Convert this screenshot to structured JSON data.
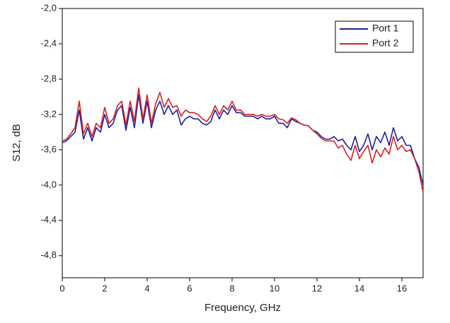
{
  "chart_data": {
    "type": "line",
    "xlabel": "Frequency, GHz",
    "ylabel": "S12, dB",
    "x": [
      0,
      0.2,
      0.4,
      0.6,
      0.8,
      1.0,
      1.2,
      1.4,
      1.6,
      1.8,
      2.0,
      2.2,
      2.4,
      2.6,
      2.8,
      3.0,
      3.2,
      3.4,
      3.6,
      3.8,
      4.0,
      4.2,
      4.4,
      4.6,
      4.8,
      5.0,
      5.2,
      5.4,
      5.6,
      5.8,
      6.0,
      6.2,
      6.4,
      6.6,
      6.8,
      7.0,
      7.2,
      7.4,
      7.6,
      7.8,
      8.0,
      8.2,
      8.4,
      8.6,
      8.8,
      9.0,
      9.2,
      9.4,
      9.6,
      9.8,
      10.0,
      10.2,
      10.4,
      10.6,
      10.8,
      11.0,
      11.2,
      11.4,
      11.6,
      11.8,
      12.0,
      12.2,
      12.4,
      12.6,
      12.8,
      13.0,
      13.2,
      13.4,
      13.6,
      13.8,
      14.0,
      14.2,
      14.4,
      14.6,
      14.8,
      15.0,
      15.2,
      15.4,
      15.6,
      15.8,
      16.0,
      16.2,
      16.4,
      16.6,
      16.8,
      17.0
    ],
    "series": [
      {
        "name": "Port 1",
        "color": "#1f1f9e",
        "values": [
          -3.52,
          -3.5,
          -3.45,
          -3.4,
          -3.15,
          -3.48,
          -3.35,
          -3.5,
          -3.35,
          -3.4,
          -3.2,
          -3.35,
          -3.3,
          -3.15,
          -3.1,
          -3.38,
          -3.12,
          -3.35,
          -2.98,
          -3.3,
          -3.05,
          -3.35,
          -3.15,
          -3.05,
          -3.2,
          -3.1,
          -3.2,
          -3.15,
          -3.32,
          -3.25,
          -3.22,
          -3.25,
          -3.25,
          -3.3,
          -3.32,
          -3.28,
          -3.15,
          -3.25,
          -3.15,
          -3.2,
          -3.1,
          -3.18,
          -3.18,
          -3.22,
          -3.22,
          -3.22,
          -3.25,
          -3.22,
          -3.25,
          -3.25,
          -3.22,
          -3.3,
          -3.3,
          -3.35,
          -3.25,
          -3.28,
          -3.3,
          -3.32,
          -3.33,
          -3.38,
          -3.4,
          -3.45,
          -3.48,
          -3.48,
          -3.45,
          -3.5,
          -3.48,
          -3.55,
          -3.6,
          -3.45,
          -3.62,
          -3.55,
          -3.42,
          -3.6,
          -3.45,
          -3.52,
          -3.4,
          -3.55,
          -3.35,
          -3.5,
          -3.45,
          -3.55,
          -3.55,
          -3.7,
          -3.8,
          -4.0
        ]
      },
      {
        "name": "Port 2",
        "color": "#d62020",
        "values": [
          -3.5,
          -3.48,
          -3.42,
          -3.35,
          -3.05,
          -3.42,
          -3.3,
          -3.45,
          -3.3,
          -3.35,
          -3.12,
          -3.3,
          -3.25,
          -3.1,
          -3.05,
          -3.32,
          -3.05,
          -3.28,
          -2.9,
          -3.25,
          -2.98,
          -3.3,
          -3.08,
          -2.95,
          -3.12,
          -3.02,
          -3.12,
          -3.1,
          -3.22,
          -3.15,
          -3.18,
          -3.18,
          -3.2,
          -3.25,
          -3.28,
          -3.22,
          -3.1,
          -3.2,
          -3.1,
          -3.15,
          -3.05,
          -3.15,
          -3.15,
          -3.2,
          -3.2,
          -3.2,
          -3.22,
          -3.2,
          -3.22,
          -3.22,
          -3.2,
          -3.25,
          -3.26,
          -3.3,
          -3.24,
          -3.26,
          -3.3,
          -3.32,
          -3.33,
          -3.38,
          -3.42,
          -3.47,
          -3.5,
          -3.5,
          -3.5,
          -3.58,
          -3.55,
          -3.65,
          -3.72,
          -3.55,
          -3.7,
          -3.62,
          -3.55,
          -3.75,
          -3.6,
          -3.68,
          -3.58,
          -3.65,
          -3.45,
          -3.6,
          -3.55,
          -3.62,
          -3.6,
          -3.7,
          -3.85,
          -4.08
        ]
      }
    ],
    "xlim": [
      0,
      17
    ],
    "xticks": [
      0,
      2,
      4,
      6,
      8,
      10,
      12,
      14,
      16
    ],
    "ylim": [
      -5.05,
      -2.0
    ],
    "yticks": [
      {
        "value": -2.0,
        "label": "-2,0"
      },
      {
        "value": -2.4,
        "label": "-2,4"
      },
      {
        "value": -2.8,
        "label": "-2,8"
      },
      {
        "value": -3.2,
        "label": "-3,2"
      },
      {
        "value": -3.6,
        "label": "-3,6"
      },
      {
        "value": -4.0,
        "label": "-4,0"
      },
      {
        "value": -4.4,
        "label": "-4,4"
      },
      {
        "value": -4.8,
        "label": "-4,8"
      }
    ],
    "grid": false,
    "legend": "upper right"
  }
}
